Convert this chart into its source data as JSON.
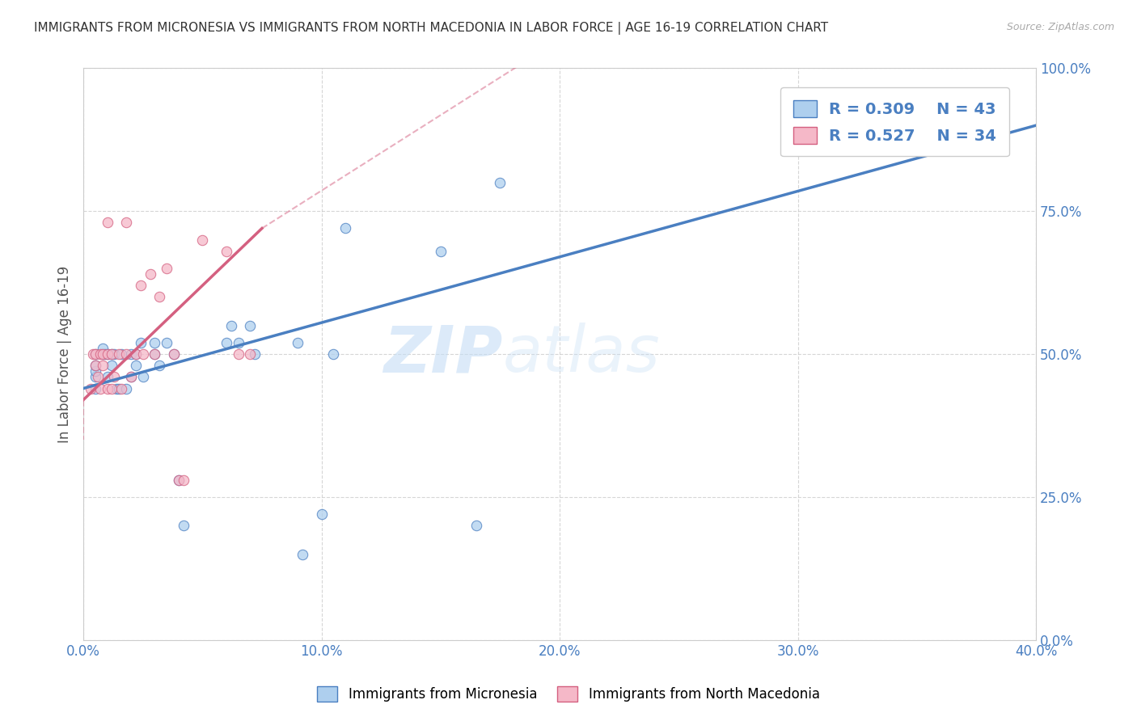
{
  "title": "IMMIGRANTS FROM MICRONESIA VS IMMIGRANTS FROM NORTH MACEDONIA IN LABOR FORCE | AGE 16-19 CORRELATION CHART",
  "source": "Source: ZipAtlas.com",
  "ylabel": "In Labor Force | Age 16-19",
  "legend_label1": "Immigrants from Micronesia",
  "legend_label2": "Immigrants from North Macedonia",
  "R1": 0.309,
  "N1": 43,
  "R2": 0.527,
  "N2": 34,
  "xlim": [
    0.0,
    0.4
  ],
  "ylim": [
    0.0,
    1.0
  ],
  "xticks": [
    0.0,
    0.1,
    0.2,
    0.3,
    0.4
  ],
  "xtick_labels": [
    "0.0%",
    "10.0%",
    "20.0%",
    "30.0%",
    "40.0%"
  ],
  "yticks": [
    0.0,
    0.25,
    0.5,
    0.75,
    1.0
  ],
  "ytick_labels": [
    "0.0%",
    "25.0%",
    "50.0%",
    "75.0%",
    "100.0%"
  ],
  "color1": "#aecfee",
  "color2": "#f5b8c8",
  "trendline_color1": "#4a7fc1",
  "trendline_color2": "#d46080",
  "watermark_zip": "ZIP",
  "watermark_atlas": "atlas",
  "background_color": "#ffffff",
  "grid_color": "#cccccc",
  "scatter1_x": [
    0.005,
    0.005,
    0.005,
    0.005,
    0.005,
    0.008,
    0.008,
    0.009,
    0.01,
    0.01,
    0.012,
    0.012,
    0.013,
    0.014,
    0.015,
    0.016,
    0.018,
    0.02,
    0.02,
    0.022,
    0.022,
    0.024,
    0.025,
    0.03,
    0.03,
    0.032,
    0.035,
    0.038,
    0.04,
    0.042,
    0.06,
    0.062,
    0.065,
    0.07,
    0.072,
    0.09,
    0.092,
    0.1,
    0.105,
    0.11,
    0.15,
    0.165,
    0.175
  ],
  "scatter1_y": [
    0.44,
    0.46,
    0.47,
    0.48,
    0.5,
    0.5,
    0.51,
    0.5,
    0.46,
    0.5,
    0.48,
    0.5,
    0.5,
    0.44,
    0.44,
    0.5,
    0.44,
    0.46,
    0.5,
    0.48,
    0.5,
    0.52,
    0.46,
    0.5,
    0.52,
    0.48,
    0.52,
    0.5,
    0.28,
    0.2,
    0.52,
    0.55,
    0.52,
    0.55,
    0.5,
    0.52,
    0.15,
    0.22,
    0.5,
    0.72,
    0.68,
    0.2,
    0.8
  ],
  "scatter2_x": [
    0.003,
    0.004,
    0.005,
    0.005,
    0.006,
    0.007,
    0.007,
    0.008,
    0.008,
    0.01,
    0.01,
    0.01,
    0.012,
    0.012,
    0.013,
    0.015,
    0.016,
    0.018,
    0.018,
    0.02,
    0.022,
    0.024,
    0.025,
    0.028,
    0.03,
    0.032,
    0.035,
    0.038,
    0.04,
    0.042,
    0.05,
    0.06,
    0.065,
    0.07
  ],
  "scatter2_y": [
    0.44,
    0.5,
    0.48,
    0.5,
    0.46,
    0.44,
    0.5,
    0.48,
    0.5,
    0.44,
    0.5,
    0.73,
    0.44,
    0.5,
    0.46,
    0.5,
    0.44,
    0.5,
    0.73,
    0.46,
    0.5,
    0.62,
    0.5,
    0.64,
    0.5,
    0.6,
    0.65,
    0.5,
    0.28,
    0.28,
    0.7,
    0.68,
    0.5,
    0.5
  ],
  "trend1_x": [
    0.0,
    0.4
  ],
  "trend1_y": [
    0.44,
    0.9
  ],
  "trend2_x": [
    0.0,
    0.075
  ],
  "trend2_y": [
    0.42,
    0.72
  ]
}
